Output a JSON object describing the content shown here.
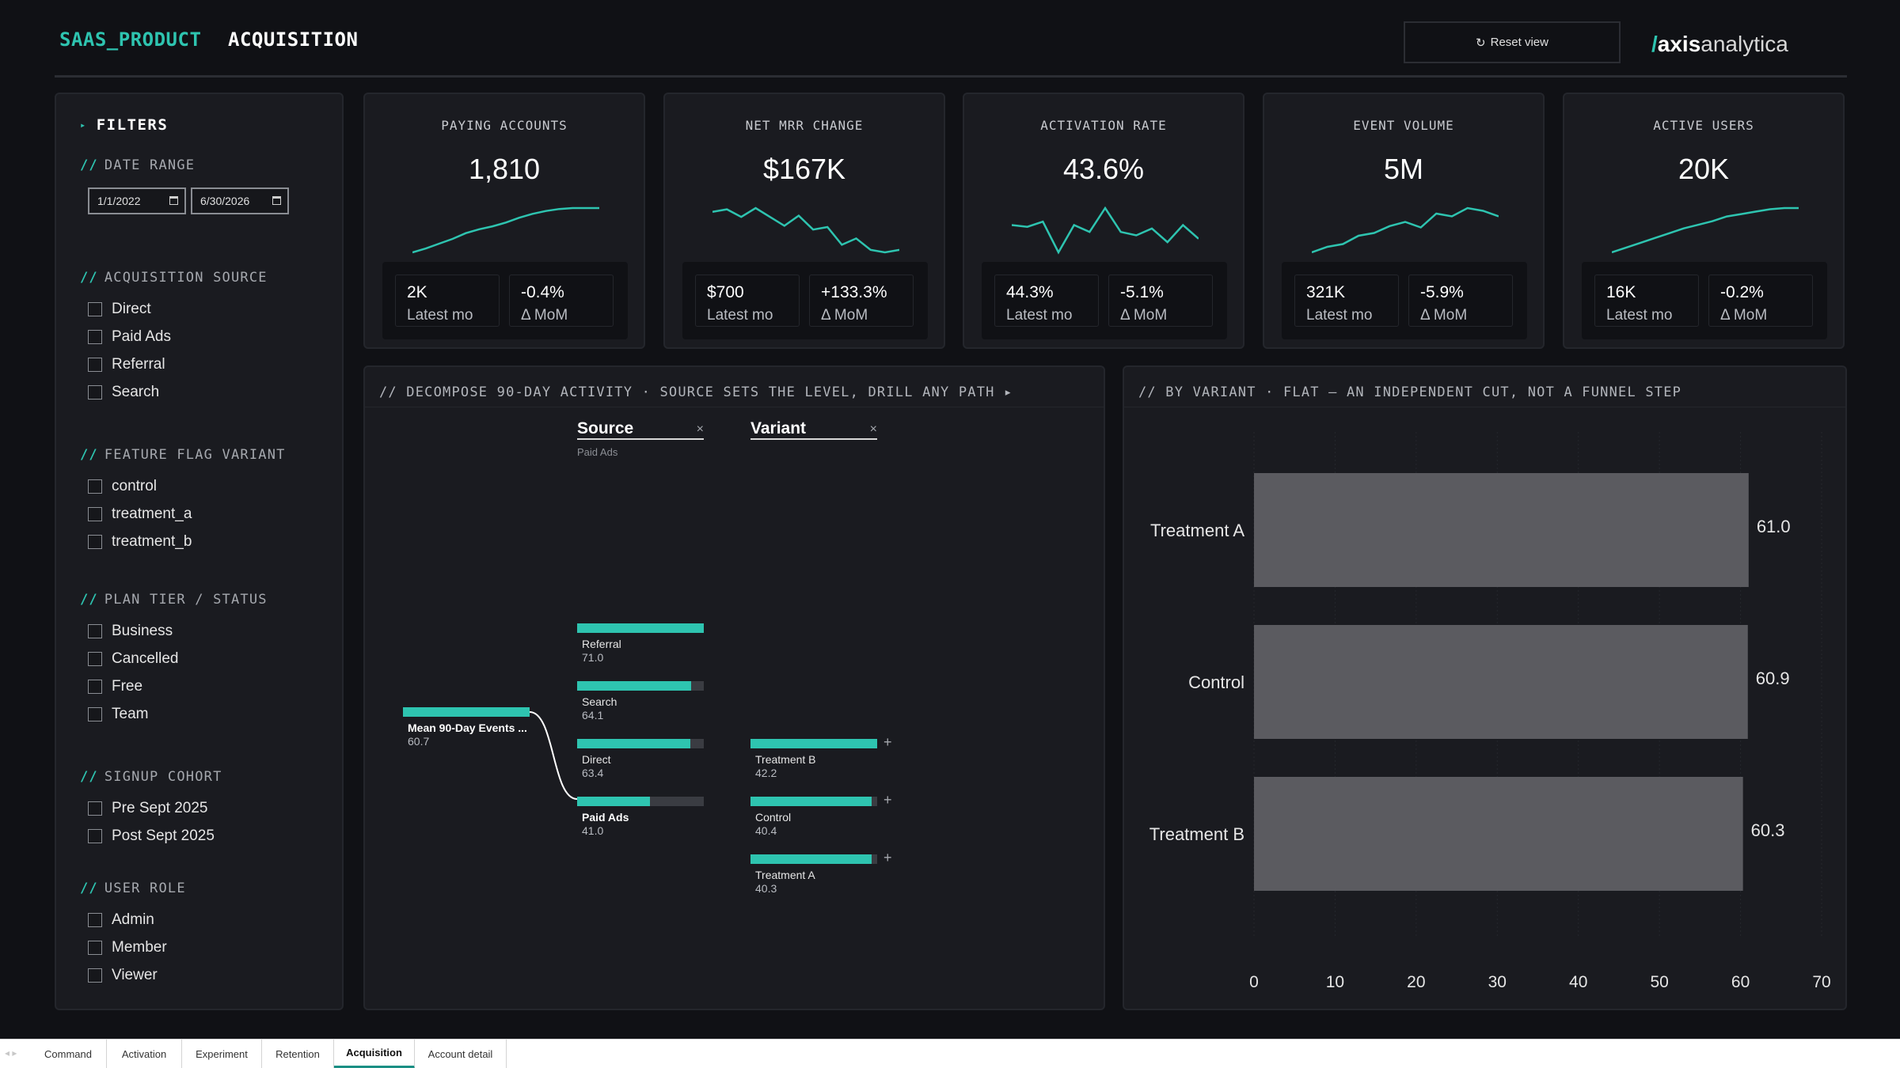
{
  "header": {
    "brand": "SAAS_PRODUCT",
    "page": "ACQUISITION",
    "reset_icon": "↻",
    "reset_label": "Reset view",
    "logo_slash": "/",
    "logo_axis": "axis",
    "logo_analytica": "analytica"
  },
  "filters": {
    "title": "FILTERS",
    "title_icon": "▸",
    "prefix": "//",
    "date_range": {
      "label": "DATE RANGE",
      "start": "1/1/2022",
      "end": "6/30/2026"
    },
    "groups": [
      {
        "label": "ACQUISITION SOURCE",
        "options": [
          "Direct",
          "Paid Ads",
          "Referral",
          "Search"
        ]
      },
      {
        "label": "FEATURE FLAG VARIANT",
        "options": [
          "control",
          "treatment_a",
          "treatment_b"
        ]
      },
      {
        "label": "PLAN TIER / STATUS",
        "options": [
          "Business",
          "Cancelled",
          "Free",
          "Team"
        ]
      },
      {
        "label": "SIGNUP COHORT",
        "options": [
          "Pre Sept 2025",
          "Post Sept 2025"
        ]
      },
      {
        "label": "USER ROLE",
        "options": [
          "Admin",
          "Member",
          "Viewer"
        ]
      }
    ]
  },
  "kpis": [
    {
      "label": "PAYING ACCOUNTS",
      "value": "1,810",
      "latest": "2K",
      "latest_label": "Latest mo",
      "mom": "-0.4%",
      "mom_label": "Δ MoM",
      "spark": [
        10,
        14,
        19,
        24,
        30,
        34,
        37,
        41,
        46,
        50,
        53,
        55,
        56,
        56,
        56
      ]
    },
    {
      "label": "NET MRR CHANGE",
      "value": "$167K",
      "latest": "$700",
      "latest_label": "Latest mo",
      "mom": "+133.3%",
      "mom_label": "Δ MoM",
      "spark": [
        50,
        52,
        46,
        53,
        46,
        39,
        47,
        36,
        38,
        24,
        29,
        20,
        18,
        20
      ]
    },
    {
      "label": "ACTIVATION RATE",
      "value": "43.6%",
      "latest": "44.3%",
      "latest_label": "Latest mo",
      "mom": "-5.1%",
      "mom_label": "Δ MoM",
      "spark": [
        38,
        37,
        40,
        22,
        38,
        34,
        48,
        34,
        32,
        36,
        28,
        38,
        30
      ]
    },
    {
      "label": "EVENT VOLUME",
      "value": "5M",
      "latest": "321K",
      "latest_label": "Latest mo",
      "mom": "-5.9%",
      "mom_label": "Δ MoM",
      "spark": [
        12,
        16,
        18,
        24,
        26,
        31,
        34,
        30,
        40,
        38,
        44,
        42,
        38
      ]
    },
    {
      "label": "ACTIVE USERS",
      "value": "20K",
      "latest": "16K",
      "latest_label": "Latest mo",
      "mom": "-0.2%",
      "mom_label": "Δ MoM",
      "spark": [
        10,
        14,
        18,
        22,
        26,
        30,
        33,
        36,
        40,
        42,
        44,
        46,
        47,
        47
      ]
    }
  ],
  "decomposition": {
    "title": "// DECOMPOSE 90-DAY ACTIVITY · SOURCE SETS THE LEVEL, DRILL ANY PATH ▸",
    "close_icon": "×",
    "expand_icon": "+",
    "columns": [
      {
        "label": "Source",
        "sub": "Paid Ads"
      },
      {
        "label": "Variant",
        "sub": ""
      }
    ],
    "root": {
      "label": "Mean 90-Day Events ...",
      "value": "60.7",
      "fraction": 1.0
    },
    "source_nodes": [
      {
        "label": "Referral",
        "value": "71.0",
        "fraction": 1.0
      },
      {
        "label": "Search",
        "value": "64.1",
        "fraction": 0.903
      },
      {
        "label": "Direct",
        "value": "63.4",
        "fraction": 0.893
      },
      {
        "label": "Paid Ads",
        "value": "41.0",
        "fraction": 0.577,
        "selected": true
      }
    ],
    "variant_nodes": [
      {
        "label": "Treatment B",
        "value": "42.2",
        "fraction": 1.0
      },
      {
        "label": "Control",
        "value": "40.4",
        "fraction": 0.957
      },
      {
        "label": "Treatment A",
        "value": "40.3",
        "fraction": 0.955
      }
    ]
  },
  "variant_chart": {
    "title": "// BY VARIANT · FLAT — AN INDEPENDENT CUT, NOT A FUNNEL STEP",
    "bar_color": "#5b5b60",
    "chart_data": {
      "type": "bar",
      "orientation": "horizontal",
      "categories": [
        "Treatment A",
        "Control",
        "Treatment B"
      ],
      "values": [
        61.0,
        60.9,
        60.3
      ],
      "labels": [
        "61.0",
        "60.9",
        "60.3"
      ],
      "xlim": [
        0,
        70
      ],
      "xticks": [
        "0",
        "10",
        "20",
        "30",
        "40",
        "50",
        "60",
        "70"
      ],
      "grid": true
    }
  },
  "tabs": {
    "nav": "◂ ▸",
    "items": [
      "Command",
      "Activation",
      "Experiment",
      "Retention",
      "Acquisition",
      "Account detail"
    ],
    "active": "Acquisition"
  },
  "colors": {
    "accent": "#2ec4b0",
    "bar": "#5b5b60",
    "panel": "#1a1b20",
    "background": "#101115"
  }
}
